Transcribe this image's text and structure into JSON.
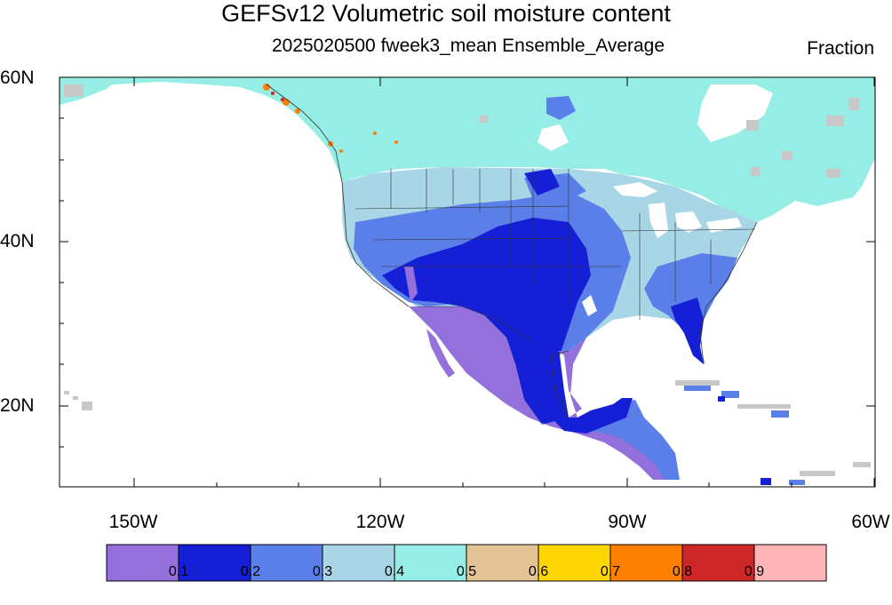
{
  "title": "GEFSv12 Volumetric soil moisture content",
  "subtitle": "2025020500 fweek3_mean Ensemble_Average",
  "units": "Fraction",
  "y_axis_labels": [
    "60N",
    "40N",
    "20N"
  ],
  "x_axis_labels": [
    "150W",
    "120W",
    "90W",
    "60W"
  ],
  "colorbar": {
    "colors": [
      "#9370DB",
      "#1520D6",
      "#5B7FE8",
      "#A8D6E6",
      "#96EDE6",
      "#E3C496",
      "#FFD700",
      "#FF7F00",
      "#CD2626",
      "#FFB5B8"
    ],
    "labels": [
      "0.1",
      "0.2",
      "0.3",
      "0.4",
      "0.5",
      "0.6",
      "0.7",
      "0.8",
      "0.9"
    ]
  }
}
